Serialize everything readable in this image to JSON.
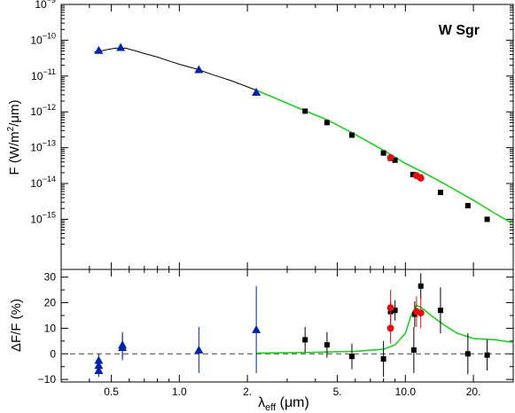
{
  "chart_data": {
    "type": "scatter",
    "x_scale": "log",
    "x_ticks": [
      {
        "value": 0.5,
        "label": "0.5"
      },
      {
        "value": 1.0,
        "label": "1.0"
      },
      {
        "value": 2.0,
        "label": "2."
      },
      {
        "value": 5.0,
        "label": "5."
      },
      {
        "value": 10.0,
        "label": "10.0"
      },
      {
        "value": 20.0,
        "label": "20."
      }
    ],
    "x_minor_ticks": [
      0.3,
      0.4,
      0.6,
      0.7,
      0.8,
      0.9,
      3,
      4,
      6,
      7,
      8,
      9,
      30
    ],
    "xlabel": {
      "main": "λ",
      "sub": "eff",
      "rest": " (μm)"
    },
    "xlim": [
      0.3,
      30
    ],
    "colors": {
      "model": "#22cc22",
      "photosphere": "#000000",
      "triangle": "#0022aa",
      "square": "#000000",
      "circle": "#dd1111"
    },
    "top_panel": {
      "label": "W Sgr",
      "ylabel": {
        "pre": "F (W/m",
        "sup": "2",
        "post": "/μm)"
      },
      "y_scale": "log",
      "ylim_exp": [
        -16.4,
        -9
      ],
      "y_ticks_exp": [
        -15,
        -14,
        -13,
        -12,
        -11,
        -10,
        -9
      ],
      "photosphere_curve": [
        [
          0.42,
          -10.33
        ],
        [
          0.45,
          -10.3
        ],
        [
          0.48,
          -10.26
        ],
        [
          0.5,
          -10.24
        ],
        [
          0.53,
          -10.22
        ],
        [
          0.55,
          -10.24
        ],
        [
          0.58,
          -10.22
        ],
        [
          0.6,
          -10.25
        ],
        [
          0.65,
          -10.31
        ],
        [
          0.7,
          -10.37
        ],
        [
          0.8,
          -10.47
        ],
        [
          0.9,
          -10.58
        ],
        [
          1.0,
          -10.67
        ],
        [
          1.2,
          -10.81
        ],
        [
          1.4,
          -10.96
        ],
        [
          1.7,
          -11.13
        ],
        [
          2.2,
          -11.4
        ]
      ],
      "model_curve": [
        [
          2.2,
          -11.4
        ],
        [
          3.0,
          -11.76
        ],
        [
          3.6,
          -11.97
        ],
        [
          4.5,
          -12.22
        ],
        [
          5.8,
          -12.58
        ],
        [
          8.0,
          -13.07
        ],
        [
          10.0,
          -13.44
        ],
        [
          12.0,
          -13.69
        ],
        [
          15.0,
          -14.02
        ],
        [
          20.0,
          -14.47
        ],
        [
          25.0,
          -14.84
        ],
        [
          30.0,
          -15.13
        ]
      ],
      "triangles": [
        [
          0.44,
          -10.28
        ],
        [
          0.55,
          -10.2
        ],
        [
          1.22,
          -10.82
        ],
        [
          2.19,
          -11.45
        ]
      ],
      "squares": [
        [
          3.6,
          -11.98
        ],
        [
          4.5,
          -12.3
        ],
        [
          5.8,
          -12.65
        ],
        [
          8.0,
          -13.15
        ],
        [
          8.6,
          -13.3
        ],
        [
          9.0,
          -13.35
        ],
        [
          10.8,
          -13.75
        ],
        [
          11.6,
          -13.82
        ],
        [
          14.3,
          -14.25
        ],
        [
          18.9,
          -14.62
        ],
        [
          23.0,
          -15.0
        ]
      ],
      "circles": [
        [
          8.6,
          -13.28
        ],
        [
          11.2,
          -13.78
        ],
        [
          11.7,
          -13.85
        ]
      ]
    },
    "bottom_panel": {
      "ylabel": "ΔF/F (%)",
      "ylim": [
        -11,
        33
      ],
      "y_ticks": [
        -10,
        0,
        10,
        20,
        30
      ],
      "y_minor_step": 5,
      "model_curve": [
        [
          2.2,
          0.3
        ],
        [
          4.0,
          0.6
        ],
        [
          6.0,
          1.0
        ],
        [
          8.0,
          1.8
        ],
        [
          9.0,
          3.5
        ],
        [
          10.0,
          8
        ],
        [
          10.6,
          15
        ],
        [
          11.2,
          19
        ],
        [
          11.8,
          18
        ],
        [
          13.0,
          15
        ],
        [
          15.0,
          11
        ],
        [
          17.0,
          8
        ],
        [
          20.0,
          6
        ],
        [
          25.0,
          5.5
        ],
        [
          30.0,
          4.5
        ]
      ],
      "triangles": [
        {
          "x": 0.44,
          "y": -2.5,
          "err": 2.5
        },
        {
          "x": 0.44,
          "y": -4.5,
          "err": 2.5
        },
        {
          "x": 0.44,
          "y": -6.5,
          "err": 2.5
        },
        {
          "x": 0.56,
          "y": 3.5,
          "err": 5
        },
        {
          "x": 0.56,
          "y": 2.5,
          "err": 5
        },
        {
          "x": 1.22,
          "y": 1.5,
          "err": 9
        },
        {
          "x": 2.19,
          "y": 9.5,
          "err": 17
        }
      ],
      "squares": [
        {
          "x": 3.6,
          "y": 5.5,
          "err": 5
        },
        {
          "x": 4.5,
          "y": 3.5,
          "err": 5
        },
        {
          "x": 5.8,
          "y": -1,
          "err": 5
        },
        {
          "x": 8.0,
          "y": -2,
          "err": 7
        },
        {
          "x": 8.6,
          "y": 16.5,
          "err": 4
        },
        {
          "x": 9.0,
          "y": 17,
          "err": 4
        },
        {
          "x": 10.9,
          "y": 1.5,
          "err": 9
        },
        {
          "x": 11.0,
          "y": 15.5,
          "err": 5
        },
        {
          "x": 11.7,
          "y": 26.5,
          "err": 5
        },
        {
          "x": 14.3,
          "y": 17,
          "err": 9
        },
        {
          "x": 18.9,
          "y": 0,
          "err": 8
        },
        {
          "x": 23.0,
          "y": -0.5,
          "err": 6
        }
      ],
      "circles": [
        {
          "x": 8.6,
          "y": 18,
          "err": 7
        },
        {
          "x": 8.6,
          "y": 10,
          "err": 6
        },
        {
          "x": 11.2,
          "y": 16.5,
          "err": 6
        },
        {
          "x": 11.7,
          "y": 16,
          "err": 6
        }
      ]
    }
  }
}
